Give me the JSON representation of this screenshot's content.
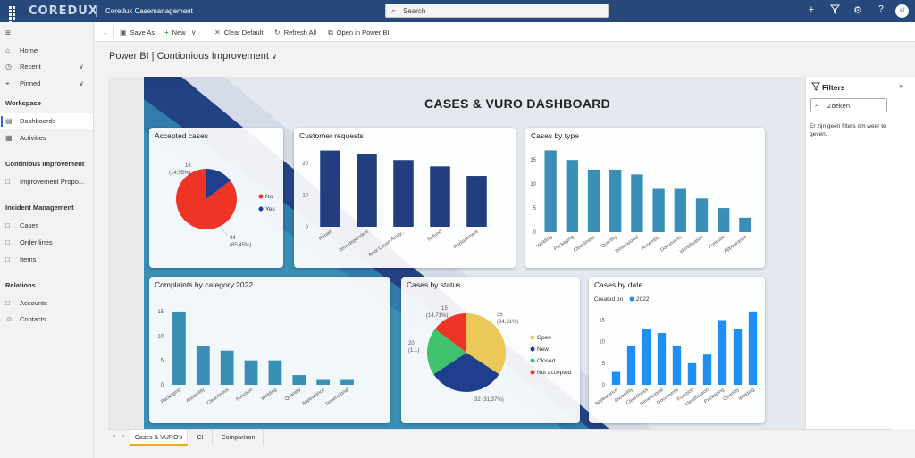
{
  "header": {
    "logo": "COREDUX",
    "app_title": "Coredux Casemanagement",
    "search_placeholder": "Search",
    "avatar": "al",
    "icons": [
      "app-launcher-icon",
      "plus-icon",
      "filter-icon",
      "gear-icon",
      "help-icon"
    ]
  },
  "sidebar": {
    "items_top": [
      {
        "label": "Home",
        "icon": "home-icon"
      },
      {
        "label": "Recent",
        "icon": "clock-icon"
      },
      {
        "label": "Pinned",
        "icon": "pin-icon"
      }
    ],
    "workspace_header": "Workspace",
    "workspace_items": [
      {
        "label": "Dashboards",
        "icon": "dashboard-icon",
        "active": true
      },
      {
        "label": "Activities",
        "icon": "activities-icon"
      }
    ],
    "ci_header": "Continious Improvement",
    "ci_items": [
      {
        "label": "Improvement Propo...",
        "icon": "document-icon"
      }
    ],
    "im_header": "Incident Management",
    "im_items": [
      {
        "label": "Cases",
        "icon": "document-icon"
      },
      {
        "label": "Order lines",
        "icon": "document-icon"
      },
      {
        "label": "Items",
        "icon": "document-icon"
      }
    ],
    "rel_header": "Relations",
    "rel_items": [
      {
        "label": "Accounts",
        "icon": "document-icon"
      },
      {
        "label": "Contacts",
        "icon": "person-icon"
      }
    ]
  },
  "toolbar": {
    "save_as": "Save As",
    "new": "New",
    "clear_default": "Clear Default",
    "refresh_all": "Refresh All",
    "open_in_powerbi": "Open in Power BI"
  },
  "page_title": "Power BI | Contionious Improvement",
  "dashboard_title": "CASES & VURO DASHBOARD",
  "filters": {
    "title": "Filters",
    "search_placeholder": "Zoeken",
    "message": "Er zijn geen filters om weer te geven."
  },
  "tabs": [
    "Cases & VURO's",
    "CI",
    "Comparison"
  ],
  "colors": {
    "accent_blue": "#2266e3",
    "chart_teal": "#3a8fb7",
    "chart_navy": "#213f7f",
    "chart_bright": "#1e8ff5",
    "pie_red": "#ef3324",
    "pie_navy": "#1f3f8c",
    "pie_yellow": "#eac85a",
    "pie_green": "#3ec26b"
  },
  "chart_data": [
    {
      "title": "Accepted cases",
      "type": "pie",
      "slices": [
        {
          "name": "No",
          "value": 94,
          "label": "94\n(85,45%)"
        },
        {
          "name": "Yes",
          "value": 16,
          "label": "16\n(14,55%)"
        }
      ],
      "labels": {
        "no": "94",
        "no_pct": "(85,45%)",
        "yes": "16",
        "yes_pct": "(14,55%)"
      }
    },
    {
      "title": "Customer requests",
      "type": "bar",
      "categories": [
        "Repair",
        "Item dependent",
        "Root Cause Analy...",
        "Refund",
        "Replacement"
      ],
      "values": [
        24,
        23,
        21,
        19,
        16
      ],
      "yticks": [
        "0",
        "10",
        "20"
      ],
      "ylim": [
        0,
        25
      ]
    },
    {
      "title": "Cases by type",
      "type": "bar",
      "categories": [
        "Welding",
        "Packaging",
        "Cleanliness",
        "Quantity",
        "Dimensional",
        "Assembly",
        "Documents",
        "Identification",
        "Function",
        "Appearance"
      ],
      "values": [
        17,
        15,
        13,
        13,
        12,
        9,
        9,
        7,
        5,
        3
      ],
      "yticks": [
        "0",
        "5",
        "10",
        "15"
      ],
      "ylim": [
        0,
        18
      ]
    },
    {
      "title": "Complaints by category 2022",
      "type": "bar",
      "categories": [
        "Packaging",
        "Assembly",
        "Cleanliness",
        "Function",
        "Welding",
        "Quantity",
        "Appearance",
        "Dimensional"
      ],
      "values": [
        15,
        8,
        7,
        5,
        5,
        2,
        1,
        1
      ],
      "yticks": [
        "0",
        "5",
        "10",
        "15"
      ],
      "ylim": [
        0,
        17
      ]
    },
    {
      "title": "Cases by status",
      "type": "pie",
      "slices": [
        {
          "name": "Open",
          "value": 35
        },
        {
          "name": "New",
          "value": 32
        },
        {
          "name": "Closed",
          "value": 20
        },
        {
          "name": "Not accepted",
          "value": 15
        }
      ],
      "labels": {
        "open": "35",
        "open_pct": "(34,31%)",
        "new": "32 (31,37%)",
        "closed": "20",
        "closed_pct": "(1...)",
        "na": "15",
        "na_pct": "(14,71%)"
      }
    },
    {
      "title": "Cases by date",
      "type": "bar",
      "legend_title": "Created on",
      "legend_item": "2022",
      "categories": [
        "Appearance",
        "Assembly",
        "Cleanliness",
        "Dimensional",
        "Documents",
        "Function",
        "Identification",
        "Packaging",
        "Quantity",
        "Welding"
      ],
      "values": [
        3,
        9,
        13,
        12,
        9,
        5,
        7,
        15,
        13,
        17
      ],
      "yticks": [
        "0",
        "5",
        "10",
        "15"
      ],
      "ylim": [
        0,
        18
      ]
    }
  ]
}
